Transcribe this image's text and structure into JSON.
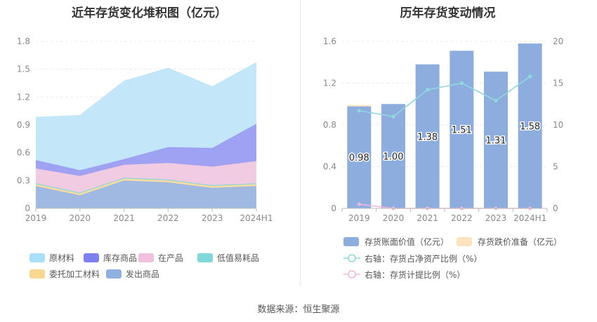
{
  "source": "数据来源：恒生聚源",
  "chart_data": [
    {
      "type": "area",
      "stacked": true,
      "title": "近年存货变化堆积图（亿元）",
      "x": [
        "2019",
        "2020",
        "2021",
        "2022",
        "2023",
        "2024H1"
      ],
      "ylim": [
        0,
        1.8
      ],
      "yticks": [
        "0",
        "0.3",
        "0.6",
        "0.9",
        "1.2",
        "1.5",
        "1.8"
      ],
      "series": [
        {
          "name": "发出商品",
          "color": "#9bb5e0",
          "values": [
            0.24,
            0.14,
            0.3,
            0.28,
            0.22,
            0.24
          ]
        },
        {
          "name": "委托加工材料",
          "color": "#f8dca0",
          "values": [
            0.02,
            0.02,
            0.02,
            0.02,
            0.02,
            0.02
          ]
        },
        {
          "name": "低值易耗品",
          "color": "#8fd8d8",
          "values": [
            0.01,
            0.01,
            0.01,
            0.01,
            0.01,
            0.01
          ]
        },
        {
          "name": "在产品",
          "color": "#f0c8e0",
          "values": [
            0.16,
            0.18,
            0.14,
            0.18,
            0.2,
            0.24
          ]
        },
        {
          "name": "库存商品",
          "color": "#9a9cf2",
          "values": [
            0.09,
            0.06,
            0.06,
            0.17,
            0.2,
            0.4
          ]
        },
        {
          "name": "原材料",
          "color": "#c0e6f8",
          "values": [
            0.46,
            0.59,
            0.84,
            0.85,
            0.66,
            0.66
          ]
        }
      ],
      "legend": [
        {
          "name": "原材料",
          "color": "#a8e0f8"
        },
        {
          "name": "库存商品",
          "color": "#7e7ff0"
        },
        {
          "name": "在产品",
          "color": "#f0c0dc"
        },
        {
          "name": "低值易耗品",
          "color": "#80d8d8"
        },
        {
          "name": "委托加工材料",
          "color": "#f8d890"
        },
        {
          "name": "发出商品",
          "color": "#8fb0e0"
        }
      ]
    },
    {
      "type": "bar",
      "title": "历年存货变动情况",
      "categories": [
        "2019",
        "2020",
        "2021",
        "2022",
        "2023",
        "2024H1"
      ],
      "ylim": [
        0,
        1.6
      ],
      "yticks": [
        "0",
        "0.4",
        "0.8",
        "1.2",
        "1.6"
      ],
      "y2lim": [
        0,
        20
      ],
      "y2ticks": [
        "0",
        "5",
        "10",
        "15",
        "20"
      ],
      "series": [
        {
          "name": "存货账面价值（亿元）",
          "color": "#8daddf",
          "values": [
            0.98,
            1.0,
            1.38,
            1.51,
            1.31,
            1.58
          ],
          "labels": [
            "0.98",
            "1.00",
            "1.38",
            "1.51",
            "1.31",
            "1.58"
          ]
        },
        {
          "name": "存货跌价准备（亿元）",
          "color": "#fce4c0",
          "values": [
            0.01,
            0,
            0,
            0,
            0,
            0
          ]
        },
        {
          "name": "右轴：存货占净资产比例（%）",
          "type": "line",
          "axis": "right",
          "color": "#8fd8de",
          "values": [
            11.7,
            11.0,
            14.2,
            15.0,
            12.9,
            15.8
          ]
        },
        {
          "name": "右轴：存货计提比例（%）",
          "type": "line",
          "axis": "right",
          "color": "#f0b8dc",
          "values": [
            0.5,
            0.0,
            0.0,
            0.0,
            0.0,
            0.0
          ]
        }
      ]
    }
  ]
}
